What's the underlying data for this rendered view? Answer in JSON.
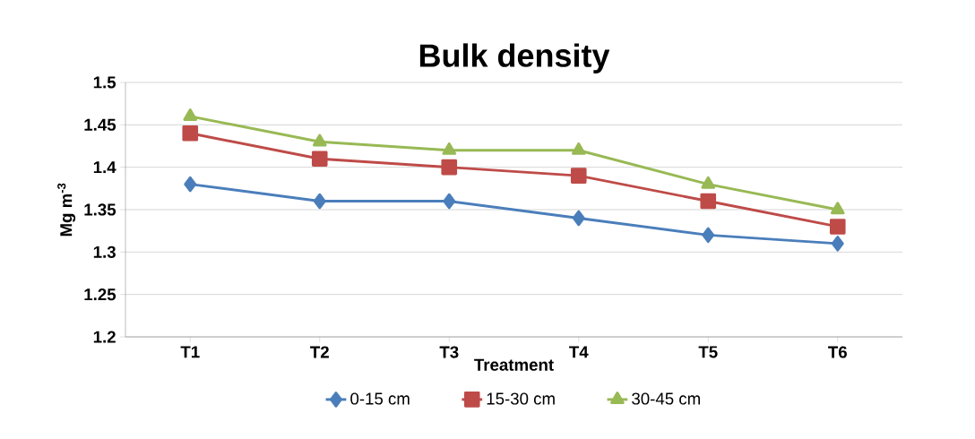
{
  "chart_data": {
    "type": "line",
    "title": "Bulk density",
    "xlabel": "Treatment",
    "ylabel": "Mg m$^{-3}$",
    "categories": [
      "T1",
      "T2",
      "T3",
      "T4",
      "T5",
      "T6"
    ],
    "series": [
      {
        "name": "0-15 cm",
        "color": "#4a7ebb",
        "marker": "diamond",
        "values": [
          1.38,
          1.36,
          1.36,
          1.34,
          1.32,
          1.31
        ]
      },
      {
        "name": "15-30 cm",
        "color": "#be4b48",
        "marker": "square",
        "values": [
          1.44,
          1.41,
          1.4,
          1.39,
          1.36,
          1.33
        ]
      },
      {
        "name": "30-45 cm",
        "color": "#98b954",
        "marker": "triangle",
        "values": [
          1.46,
          1.43,
          1.42,
          1.42,
          1.38,
          1.35
        ]
      }
    ],
    "ylim": [
      1.2,
      1.5
    ],
    "yticks": [
      1.2,
      1.25,
      1.3,
      1.35,
      1.4,
      1.45,
      1.5
    ],
    "grid": "y",
    "legend": "bottom"
  }
}
